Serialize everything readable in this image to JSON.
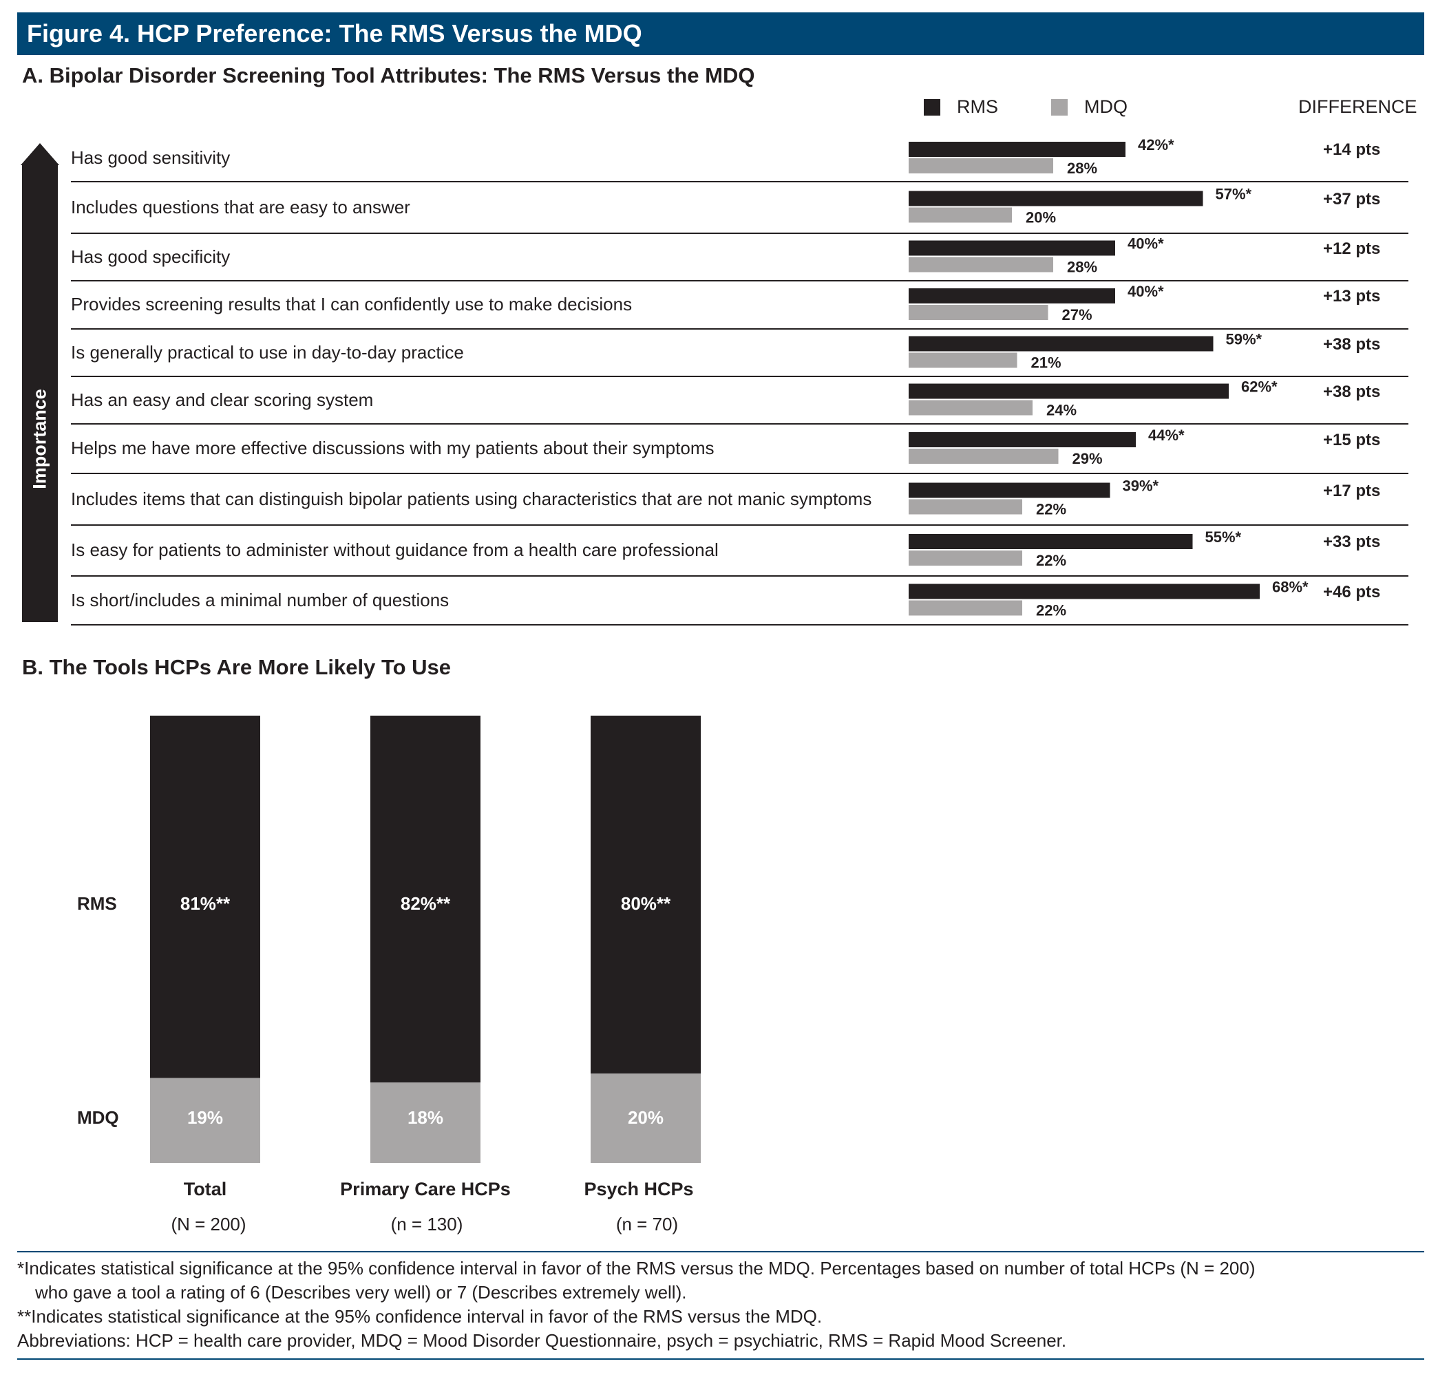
{
  "figure_title": "Figure 4. HCP Preference: The RMS Versus the MDQ",
  "colors": {
    "rms": "#231f20",
    "mdq": "#a8a6a6",
    "banner": "#004774"
  },
  "chart_data": [
    {
      "type": "bar",
      "orientation": "horizontal",
      "title": "A. Bipolar Disorder Screening Tool Attributes: The RMS Versus the MDQ",
      "legend": {
        "rms": "RMS",
        "mdq": "MDQ"
      },
      "difference_header": "DIFFERENCE",
      "axis_label": "Importance",
      "categories": [
        "Has good sensitivity",
        "Includes questions that are easy to answer",
        "Has good specificity",
        "Provides screening results that I can confidently use to make decisions",
        "Is generally practical to use in day-to-day practice",
        "Has an easy and clear scoring system",
        "Helps me have more effective discussions with my patients about their symptoms",
        "Includes items that can distinguish bipolar patients using characteristics that are not manic symptoms",
        "Is easy for patients to administer without guidance from a health care professional",
        "Is short/includes a minimal number of questions"
      ],
      "series": [
        {
          "name": "RMS",
          "values": [
            42,
            57,
            40,
            40,
            59,
            62,
            44,
            39,
            55,
            68
          ],
          "labels": [
            "42%*",
            "57%*",
            "40%*",
            "40%*",
            "59%*",
            "62%*",
            "44%*",
            "39%*",
            "55%*",
            "68%*"
          ]
        },
        {
          "name": "MDQ",
          "values": [
            28,
            20,
            28,
            27,
            21,
            24,
            29,
            22,
            22,
            22
          ],
          "labels": [
            "28%",
            "20%",
            "28%",
            "27%",
            "21%",
            "24%",
            "29%",
            "22%",
            "22%",
            "22%"
          ]
        }
      ],
      "differences": [
        "+14 pts",
        "+37 pts",
        "+12 pts",
        "+13 pts",
        "+38 pts",
        "+38 pts",
        "+15 pts",
        "+17 pts",
        "+33 pts",
        "+46 pts"
      ]
    },
    {
      "type": "bar",
      "stacked": true,
      "title": "B. The Tools HCPs Are More Likely To Use",
      "series_labels": {
        "rms": "RMS",
        "mdq": "MDQ"
      },
      "categories": [
        "Total",
        "Primary Care HCPs",
        "Psych HCPs"
      ],
      "category_n": [
        "(N = 200)",
        "(n = 130)",
        "(n = 70)"
      ],
      "series": [
        {
          "name": "RMS",
          "values": [
            81,
            82,
            80
          ],
          "labels": [
            "81%**",
            "82%**",
            "80%**"
          ]
        },
        {
          "name": "MDQ",
          "values": [
            19,
            18,
            20
          ],
          "labels": [
            "19%",
            "18%",
            "20%"
          ]
        }
      ]
    }
  ],
  "footnotes": {
    "line1": "*Indicates statistical significance at the 95% confidence interval in favor of the RMS versus the MDQ. Percentages based on number of total HCPs (N = 200)",
    "line2": "who gave a tool a rating of 6 (Describes very well) or 7 (Describes extremely well).",
    "line3": "**Indicates statistical significance at the 95% confidence interval in favor of the RMS versus the MDQ.",
    "line4": "Abbreviations: HCP = health care provider, MDQ = Mood Disorder Questionnaire, psych = psychiatric, RMS = Rapid Mood Screener."
  }
}
